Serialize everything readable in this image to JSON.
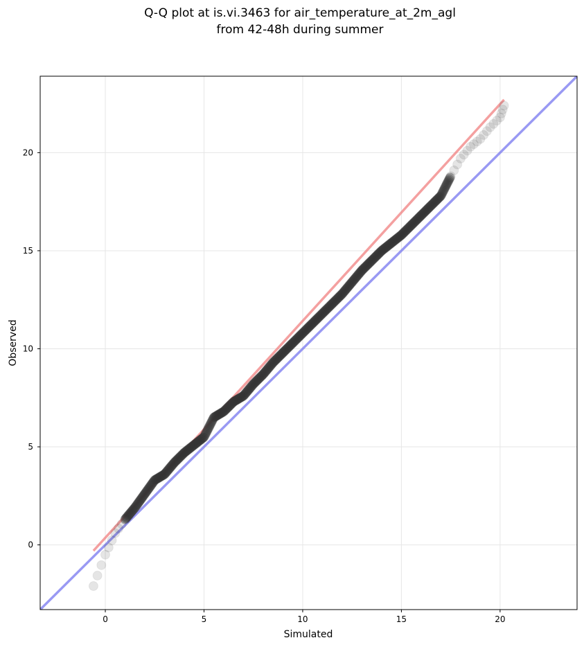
{
  "chart_data": {
    "type": "scatter",
    "title_lines": [
      "Q-Q plot at is.vi.3463 for air_temperature_at_2m_agl",
      "from 42-48h during summer"
    ],
    "xlabel": "Simulated",
    "ylabel": "Observed",
    "xlim": [
      -3.3,
      23.9
    ],
    "ylim": [
      -3.3,
      23.9
    ],
    "xticks": [
      0,
      5,
      10,
      15,
      20
    ],
    "yticks": [
      0,
      5,
      10,
      15,
      20
    ],
    "xtick_labels": [
      "0",
      "5",
      "10",
      "15",
      "20"
    ],
    "ytick_labels": [
      "0",
      "5",
      "10",
      "15",
      "20"
    ],
    "grid": true,
    "colors": {
      "points": "#333333",
      "fit_line": "#f08080",
      "identity_line": "#8080f0",
      "grid": "#e6e6e6"
    },
    "identity_line": {
      "x": [
        -3.3,
        23.9
      ],
      "y": [
        -3.3,
        23.9
      ]
    },
    "fit_line": {
      "x": [
        -0.6,
        20.2
      ],
      "y": [
        -0.3,
        22.7
      ]
    },
    "anchor_points": {
      "x": [
        -0.6,
        0.0,
        0.5,
        1.0,
        1.5,
        2.0,
        2.5,
        3.0,
        3.5,
        4.0,
        4.5,
        5.0,
        5.5,
        6.0,
        6.5,
        7.0,
        7.5,
        8.0,
        8.5,
        9.0,
        9.5,
        10.0,
        10.5,
        11.0,
        11.5,
        12.0,
        12.5,
        13.0,
        13.5,
        14.0,
        14.5,
        15.0,
        15.5,
        16.0,
        16.5,
        17.0,
        17.5,
        18.0,
        18.5,
        19.0,
        19.5,
        20.0,
        20.2
      ],
      "y": [
        -2.1,
        -0.5,
        0.6,
        1.3,
        1.9,
        2.6,
        3.3,
        3.6,
        4.2,
        4.7,
        5.1,
        5.5,
        6.5,
        6.8,
        7.3,
        7.6,
        8.2,
        8.7,
        9.3,
        9.8,
        10.3,
        10.8,
        11.3,
        11.8,
        12.3,
        12.8,
        13.4,
        14.0,
        14.5,
        15.0,
        15.4,
        15.8,
        16.3,
        16.8,
        17.3,
        17.8,
        18.8,
        19.7,
        20.3,
        20.7,
        21.3,
        21.8,
        22.4
      ]
    }
  }
}
